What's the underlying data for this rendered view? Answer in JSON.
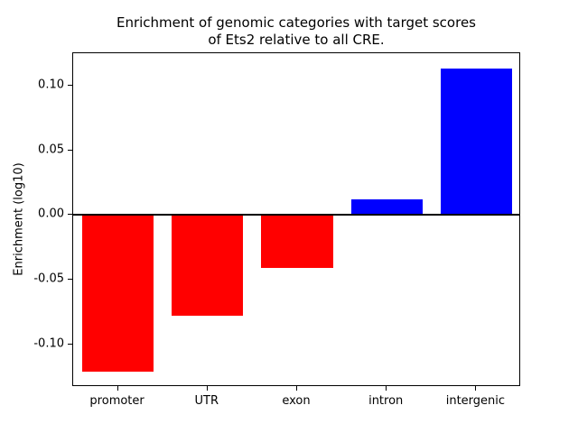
{
  "chart_data": {
    "type": "bar",
    "title": "Enrichment of genomic categories with target scores\nof Ets2 relative to all CRE.",
    "xlabel": "",
    "ylabel": "Enrichment (log10)",
    "categories": [
      "promoter",
      "UTR",
      "exon",
      "intron",
      "intergenic"
    ],
    "values": [
      -0.121,
      -0.078,
      -0.041,
      0.012,
      0.113
    ],
    "bar_colors": [
      "#ff0000",
      "#ff0000",
      "#ff0000",
      "#0000ff",
      "#0000ff"
    ],
    "positive_color": "#0000ff",
    "negative_color": "#ff0000",
    "ylim": [
      -0.133,
      0.125
    ],
    "yticks": [
      -0.1,
      -0.05,
      0.0,
      0.05,
      0.1
    ],
    "grid": false,
    "legend": "none",
    "zero_line": true,
    "zero_line_color": "#000000"
  }
}
